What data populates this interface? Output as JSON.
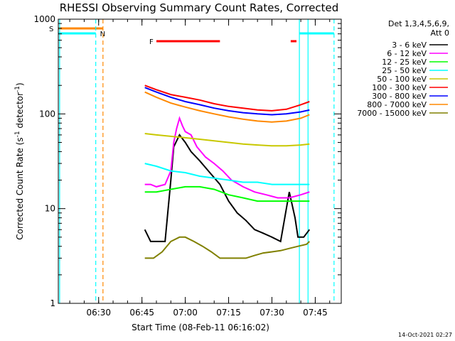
{
  "chart_data": {
    "type": "line",
    "title": "RHESSI Observing Summary Count Rates, Corrected",
    "xlabel": "Start Time (08-Feb-11 06:16:02)",
    "ylabel": "Corrected Count Rate (s",
    "ylabel_sup": "-1",
    "ylabel_mid": " detector",
    "ylabel_end": ")",
    "xlim": [
      "06:16:02",
      "07:54:00"
    ],
    "ylim": [
      1,
      1000
    ],
    "yscale": "log",
    "x_ticks": [
      "06:30",
      "06:45",
      "07:00",
      "07:15",
      "07:30",
      "07:45"
    ],
    "y_ticks": [
      "1",
      "10",
      "100",
      "1000"
    ],
    "legend_header": [
      "Det 1,3,4,5,6,9,",
      "Att 0"
    ],
    "legend_position": "right",
    "series": [
      {
        "name": "3 - 6 keV",
        "color": "#000000",
        "points": [
          [
            "06:46:00",
            6
          ],
          [
            "06:48:00",
            4.5
          ],
          [
            "06:50:00",
            4.5
          ],
          [
            "06:53:00",
            4.5
          ],
          [
            "06:55:00",
            20
          ],
          [
            "06:56:00",
            45
          ],
          [
            "06:58:00",
            60
          ],
          [
            "07:00:00",
            50
          ],
          [
            "07:02:00",
            40
          ],
          [
            "07:05:00",
            32
          ],
          [
            "07:08:00",
            25
          ],
          [
            "07:12:00",
            18
          ],
          [
            "07:15:00",
            12
          ],
          [
            "07:18:00",
            9
          ],
          [
            "07:21:00",
            7.5
          ],
          [
            "07:24:00",
            6
          ],
          [
            "07:27:00",
            5.5
          ],
          [
            "07:30:00",
            5
          ],
          [
            "07:33:00",
            4.5
          ],
          [
            "07:36:00",
            15
          ],
          [
            "07:38:00",
            8
          ],
          [
            "07:39:00",
            5
          ],
          [
            "07:41:00",
            5
          ],
          [
            "07:43:00",
            6
          ]
        ]
      },
      {
        "name": "6 - 12 keV",
        "color": "#ff00ff",
        "points": [
          [
            "06:46:00",
            18
          ],
          [
            "06:48:00",
            18
          ],
          [
            "06:50:00",
            17
          ],
          [
            "06:53:00",
            18
          ],
          [
            "06:55:00",
            25
          ],
          [
            "06:56:00",
            50
          ],
          [
            "06:57:00",
            70
          ],
          [
            "06:58:00",
            90
          ],
          [
            "06:59:00",
            75
          ],
          [
            "07:00:00",
            65
          ],
          [
            "07:02:00",
            60
          ],
          [
            "07:04:00",
            45
          ],
          [
            "07:07:00",
            35
          ],
          [
            "07:10:00",
            30
          ],
          [
            "07:13:00",
            25
          ],
          [
            "07:16:00",
            20
          ],
          [
            "07:20:00",
            17
          ],
          [
            "07:24:00",
            15
          ],
          [
            "07:28:00",
            14
          ],
          [
            "07:32:00",
            13
          ],
          [
            "07:36:00",
            13
          ],
          [
            "07:40:00",
            14
          ],
          [
            "07:43:00",
            15
          ]
        ]
      },
      {
        "name": "12 - 25 keV",
        "color": "#00ff00",
        "points": [
          [
            "06:46:00",
            15
          ],
          [
            "06:50:00",
            15
          ],
          [
            "06:55:00",
            16
          ],
          [
            "07:00:00",
            17
          ],
          [
            "07:05:00",
            17
          ],
          [
            "07:10:00",
            16
          ],
          [
            "07:15:00",
            14
          ],
          [
            "07:20:00",
            13
          ],
          [
            "07:25:00",
            12
          ],
          [
            "07:30:00",
            12
          ],
          [
            "07:35:00",
            12
          ],
          [
            "07:40:00",
            12
          ],
          [
            "07:43:00",
            12
          ]
        ]
      },
      {
        "name": "25 - 50 keV",
        "color": "#00ffff",
        "points": [
          [
            "06:46:00",
            30
          ],
          [
            "06:50:00",
            28
          ],
          [
            "06:55:00",
            25
          ],
          [
            "07:00:00",
            24
          ],
          [
            "07:05:00",
            22
          ],
          [
            "07:10:00",
            21
          ],
          [
            "07:15:00",
            20
          ],
          [
            "07:20:00",
            19
          ],
          [
            "07:25:00",
            19
          ],
          [
            "07:30:00",
            18
          ],
          [
            "07:35:00",
            18
          ],
          [
            "07:40:00",
            18
          ],
          [
            "07:43:00",
            18
          ]
        ]
      },
      {
        "name": "50 - 100 keV",
        "color": "#c8c800",
        "points": [
          [
            "06:46:00",
            62
          ],
          [
            "06:50:00",
            60
          ],
          [
            "06:55:00",
            58
          ],
          [
            "07:00:00",
            56
          ],
          [
            "07:05:00",
            54
          ],
          [
            "07:10:00",
            52
          ],
          [
            "07:15:00",
            50
          ],
          [
            "07:20:00",
            48
          ],
          [
            "07:25:00",
            47
          ],
          [
            "07:30:00",
            46
          ],
          [
            "07:35:00",
            46
          ],
          [
            "07:40:00",
            47
          ],
          [
            "07:43:00",
            48
          ]
        ]
      },
      {
        "name": "100 - 300 keV",
        "color": "#ff0000",
        "points": [
          [
            "06:46:00",
            200
          ],
          [
            "06:50:00",
            180
          ],
          [
            "06:55:00",
            160
          ],
          [
            "07:00:00",
            150
          ],
          [
            "07:05:00",
            140
          ],
          [
            "07:10:00",
            128
          ],
          [
            "07:15:00",
            120
          ],
          [
            "07:20:00",
            115
          ],
          [
            "07:25:00",
            110
          ],
          [
            "07:30:00",
            108
          ],
          [
            "07:35:00",
            112
          ],
          [
            "07:40:00",
            125
          ],
          [
            "07:43:00",
            135
          ]
        ]
      },
      {
        "name": "300 - 800 keV",
        "color": "#0000ff",
        "points": [
          [
            "06:46:00",
            190
          ],
          [
            "06:50:00",
            170
          ],
          [
            "06:55:00",
            150
          ],
          [
            "07:00:00",
            135
          ],
          [
            "07:05:00",
            125
          ],
          [
            "07:10:00",
            115
          ],
          [
            "07:15:00",
            108
          ],
          [
            "07:20:00",
            103
          ],
          [
            "07:25:00",
            100
          ],
          [
            "07:30:00",
            98
          ],
          [
            "07:35:00",
            100
          ],
          [
            "07:40:00",
            105
          ],
          [
            "07:43:00",
            110
          ]
        ]
      },
      {
        "name": "800 - 7000 keV",
        "color": "#ff8800",
        "points": [
          [
            "06:46:00",
            170
          ],
          [
            "06:50:00",
            150
          ],
          [
            "06:55:00",
            130
          ],
          [
            "07:00:00",
            118
          ],
          [
            "07:05:00",
            108
          ],
          [
            "07:10:00",
            100
          ],
          [
            "07:15:00",
            93
          ],
          [
            "07:20:00",
            88
          ],
          [
            "07:25:00",
            84
          ],
          [
            "07:30:00",
            82
          ],
          [
            "07:35:00",
            84
          ],
          [
            "07:40:00",
            90
          ],
          [
            "07:43:00",
            98
          ]
        ]
      },
      {
        "name": "7000 - 15000 keV",
        "color": "#808000",
        "points": [
          [
            "06:46:00",
            3
          ],
          [
            "06:49:00",
            3
          ],
          [
            "06:52:00",
            3.5
          ],
          [
            "06:55:00",
            4.5
          ],
          [
            "06:58:00",
            5
          ],
          [
            "07:00:00",
            5
          ],
          [
            "07:03:00",
            4.5
          ],
          [
            "07:06:00",
            4
          ],
          [
            "07:09:00",
            3.5
          ],
          [
            "07:12:00",
            3
          ],
          [
            "07:15:00",
            3
          ],
          [
            "07:18:00",
            3
          ],
          [
            "07:21:00",
            3
          ],
          [
            "07:24:00",
            3.2
          ],
          [
            "07:27:00",
            3.4
          ],
          [
            "07:30:00",
            3.5
          ],
          [
            "07:33:00",
            3.6
          ],
          [
            "07:36:00",
            3.8
          ],
          [
            "07:39:00",
            4
          ],
          [
            "07:42:00",
            4.2
          ],
          [
            "07:43:00",
            4.5
          ]
        ]
      }
    ],
    "flags": [
      {
        "label": "S",
        "color": "#ff8800",
        "start": "06:16:02",
        "end": "06:31:30"
      },
      {
        "label": "N",
        "color": "#00ffff",
        "start": "06:16:02",
        "end": "06:29:00"
      },
      {
        "label": "F",
        "color": "#ff0000",
        "start": "06:50:00",
        "end": "07:12:00"
      },
      {
        "label": "",
        "color": "#ff0000",
        "start": "07:36:30",
        "end": "07:38:30"
      },
      {
        "label": "",
        "color": "#00ffff",
        "start": "07:39:30",
        "end": "07:51:30"
      }
    ],
    "vlines": [
      {
        "time": "06:16:30",
        "color": "#00ffff",
        "style": "solid"
      },
      {
        "time": "06:29:00",
        "color": "#00ffff",
        "style": "dashed"
      },
      {
        "time": "06:31:30",
        "color": "#ff8800",
        "style": "dashed"
      },
      {
        "time": "07:39:30",
        "color": "#00ffff",
        "style": "solid"
      },
      {
        "time": "07:42:30",
        "color": "#00ffff",
        "style": "solid"
      },
      {
        "time": "07:51:30",
        "color": "#00ffff",
        "style": "dashed"
      }
    ],
    "timestamp": "14-Oct-2021 02:27"
  }
}
